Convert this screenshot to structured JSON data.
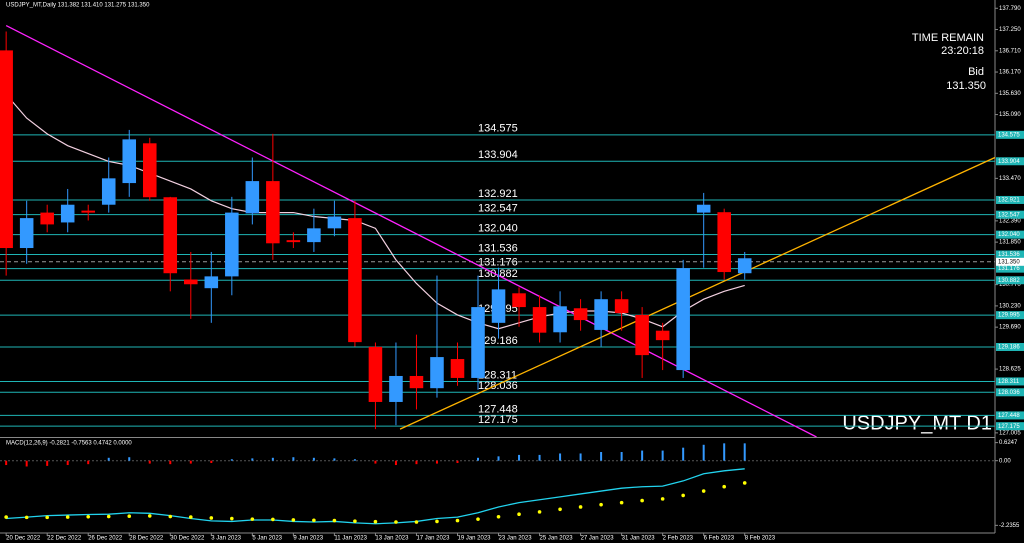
{
  "header": {
    "symbol_info": "USDJPY_MT,Daily  131.382 131.410 131.275 131.350",
    "time_remain_label": "TIME REMAIN",
    "time_remain": "23:20:18",
    "bid_label": "Bid",
    "watermark": "USDJPY_MT D1"
  },
  "chart_data": [
    {
      "type": "candlestick",
      "categories": [
        "20 Dec 2022",
        null,
        "22 Dec 2022",
        null,
        "26 Dec 2022",
        null,
        "28 Dec 2022",
        null,
        "30 Dec 2022",
        null,
        "3 Jan 2023",
        null,
        "5 Jan 2023",
        null,
        "9 Jan 2023",
        null,
        "11 Jan 2023",
        null,
        "13 Jan 2023",
        null,
        "17 Jan 2023",
        null,
        "19 Jan 2023",
        null,
        "23 Jan 2023",
        null,
        "25 Jan 2023",
        null,
        "27 Jan 2023",
        null,
        "31 Jan 2023",
        null,
        "2 Feb 2023",
        null,
        "6 Feb 2023",
        null,
        "8 Feb 2023"
      ],
      "open": [
        136.72,
        131.7,
        132.6,
        132.35,
        132.65,
        132.8,
        133.35,
        134.36,
        132.99,
        130.9,
        130.68,
        130.98,
        132.58,
        133.4,
        131.9,
        131.85,
        132.2,
        132.46,
        129.19,
        127.79,
        128.45,
        128.14,
        128.88,
        128.4,
        129.8,
        130.55,
        130.2,
        129.56,
        130.17,
        129.62,
        130.4,
        130.0,
        129.6,
        128.6,
        132.6,
        132.61,
        131.06
      ],
      "high": [
        137.2,
        132.9,
        132.8,
        133.2,
        132.8,
        134.0,
        134.7,
        134.5,
        133.0,
        131.6,
        131.6,
        133.0,
        134.0,
        134.6,
        132.1,
        132.7,
        132.9,
        132.9,
        129.3,
        129.3,
        129.5,
        131.0,
        129.3,
        131.0,
        131.2,
        130.7,
        130.5,
        130.6,
        130.4,
        130.6,
        130.6,
        130.2,
        129.8,
        131.4,
        133.1,
        132.7,
        131.6
      ],
      "low": [
        131.0,
        131.3,
        132.1,
        132.1,
        132.4,
        132.6,
        133.0,
        132.9,
        130.6,
        129.9,
        129.8,
        130.5,
        132.3,
        131.4,
        131.7,
        131.6,
        132.0,
        129.2,
        127.1,
        127.2,
        127.6,
        127.9,
        128.2,
        128.1,
        129.4,
        129.7,
        129.3,
        129.3,
        129.6,
        129.2,
        129.6,
        128.4,
        128.6,
        128.4,
        131.2,
        130.9,
        130.9
      ],
      "close": [
        131.7,
        132.46,
        132.3,
        132.8,
        132.6,
        133.47,
        134.46,
        132.99,
        131.06,
        130.78,
        130.98,
        132.6,
        133.4,
        131.82,
        131.85,
        132.2,
        132.5,
        129.31,
        127.79,
        128.45,
        128.14,
        128.93,
        128.4,
        130.2,
        130.65,
        130.2,
        129.55,
        130.22,
        129.87,
        130.4,
        130.05,
        128.98,
        129.36,
        131.19,
        132.8,
        131.09,
        131.44
      ],
      "up_color": "#3399ff",
      "down_color": "#ff0000",
      "xlim": [
        -0.3,
        48.2
      ],
      "ylim": [
        126.9,
        138.0
      ],
      "yticks": [
        {
          "value": 137.79,
          "label": "137.790"
        },
        {
          "value": 137.25,
          "label": "137.250"
        },
        {
          "value": 136.71,
          "label": "136.710"
        },
        {
          "value": 136.17,
          "label": "136.170"
        },
        {
          "value": 135.63,
          "label": "135.630"
        },
        {
          "value": 135.09,
          "label": "135.090"
        },
        {
          "value": 133.47,
          "label": "133.470"
        },
        {
          "value": 132.39,
          "label": "132.390"
        },
        {
          "value": 131.85,
          "label": "131.850"
        },
        {
          "value": 130.77,
          "label": "130.770"
        },
        {
          "value": 130.23,
          "label": "130.230"
        },
        {
          "value": 129.69,
          "label": "129.690"
        },
        128.625,
        127.005
      ],
      "levels": {
        "color": "#1fb5b5",
        "values": [
          134.575,
          133.904,
          132.921,
          132.547,
          {
            "value": 132.04,
            "label": "132.040"
          },
          131.536,
          131.176,
          130.882,
          129.995,
          129.186,
          128.311,
          128.036,
          127.448,
          127.175
        ]
      },
      "last_price": {
        "value": 131.35,
        "label": "131.350"
      },
      "series": [
        {
          "color": "#f2d0e0",
          "values": [
            135.6,
            135.0,
            134.6,
            134.3,
            134.1,
            133.9,
            133.8,
            133.6,
            133.4,
            133.2,
            132.9,
            132.7,
            132.6,
            132.6,
            132.6,
            132.5,
            132.45,
            132.4,
            132.2,
            131.4,
            130.8,
            130.3,
            130.0,
            129.8,
            129.65,
            129.8,
            129.95,
            130.05,
            130.1,
            130.1,
            130.05,
            129.9,
            129.7,
            130.1,
            130.4,
            130.6,
            130.75
          ]
        }
      ],
      "trendlines": [
        {
          "color": "#ff22ff",
          "x": [
            0,
            39.5
          ],
          "values": [
            137.35,
            126.9
          ]
        },
        {
          "color": "#ffb400",
          "x": [
            19.2,
            48.2
          ],
          "values": [
            127.1,
            134.0
          ]
        }
      ]
    },
    {
      "type": "macd",
      "title": "MACD(12,26,9) -0.2821 -0.7563 0.4742 0.0000",
      "ylim": [
        -2.5,
        0.75
      ],
      "yticks": [
        0.6247,
        {
          "value": 0,
          "label": "0.00"
        },
        -2.2355
      ],
      "histogram": [
        -0.15,
        -0.2,
        -0.18,
        -0.15,
        -0.12,
        0.1,
        0.12,
        -0.1,
        -0.12,
        -0.1,
        -0.08,
        0.05,
        0.08,
        0.1,
        0.12,
        0.1,
        0.08,
        0.05,
        -0.1,
        -0.15,
        -0.12,
        -0.1,
        -0.08,
        0.1,
        0.15,
        0.2,
        0.2,
        0.25,
        0.25,
        0.3,
        0.3,
        0.35,
        0.35,
        0.45,
        0.55,
        0.6,
        0.6
      ],
      "series": [
        {
          "color": "#22d3ee",
          "style": "line",
          "values": [
            -2.0,
            -1.95,
            -1.9,
            -1.88,
            -1.86,
            -1.85,
            -1.8,
            -1.82,
            -1.9,
            -2.0,
            -2.08,
            -2.1,
            -2.05,
            -2.05,
            -2.1,
            -2.12,
            -2.1,
            -2.15,
            -2.18,
            -2.15,
            -2.1,
            -2.0,
            -1.95,
            -1.8,
            -1.6,
            -1.45,
            -1.35,
            -1.25,
            -1.15,
            -1.05,
            -0.95,
            -0.9,
            -0.88,
            -0.7,
            -0.45,
            -0.35,
            -0.28
          ]
        },
        {
          "color": "#ffff00",
          "style": "dots",
          "values": [
            -1.95,
            -1.96,
            -1.96,
            -1.95,
            -1.94,
            -1.93,
            -1.92,
            -1.91,
            -1.93,
            -1.95,
            -1.98,
            -2.0,
            -2.02,
            -2.03,
            -2.05,
            -2.06,
            -2.07,
            -2.09,
            -2.11,
            -2.12,
            -2.12,
            -2.1,
            -2.07,
            -2.02,
            -1.94,
            -1.85,
            -1.77,
            -1.68,
            -1.6,
            -1.52,
            -1.45,
            -1.38,
            -1.32,
            -1.2,
            -1.05,
            -0.9,
            -0.77
          ]
        }
      ]
    }
  ]
}
